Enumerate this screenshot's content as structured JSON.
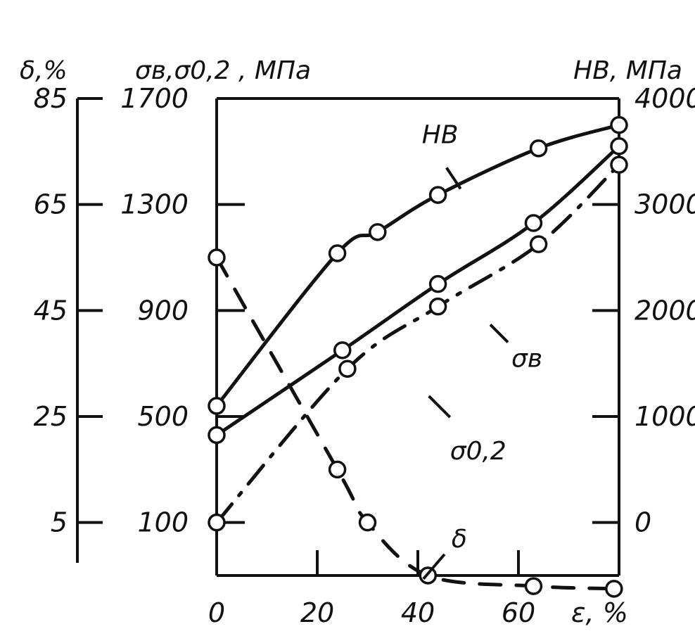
{
  "chart_data": {
    "type": "line",
    "x_axis": {
      "label": "ε, %",
      "ticks": [
        "0",
        "20",
        "40",
        "60"
      ],
      "range": [
        0,
        80
      ]
    },
    "axis_titles": {
      "delta": "δ,%",
      "sigma": "σв,σ0,2 , МПа",
      "hb": "НВ, МПа"
    },
    "y_axes": {
      "delta": {
        "ticks": [
          "85",
          "65",
          "45",
          "25",
          "5"
        ],
        "range": [
          -5,
          85
        ]
      },
      "sigma": {
        "ticks": [
          "1700",
          "1300",
          "900",
          "500",
          "100"
        ],
        "range": [
          -100,
          1700
        ]
      },
      "hb": {
        "ticks": [
          "4000",
          "3000",
          "2000",
          "1000",
          "0"
        ],
        "range": [
          -500,
          4000
        ]
      }
    },
    "series": [
      {
        "name": "НВ",
        "axis": "hb",
        "style": "solid",
        "label_point": [
          45,
          3480
        ],
        "points": [
          [
            0,
            1100
          ],
          [
            24,
            2540
          ],
          [
            32,
            2740
          ],
          [
            44,
            3090
          ],
          [
            64,
            3530
          ],
          [
            80,
            3750
          ]
        ]
      },
      {
        "name": "σв",
        "axis": "sigma",
        "style": "solid",
        "label_point": [
          60,
          860
        ],
        "points": [
          [
            0,
            430
          ],
          [
            25,
            750
          ],
          [
            44,
            1000
          ],
          [
            63,
            1230
          ],
          [
            80,
            1520
          ]
        ]
      },
      {
        "name": "σ0,2",
        "axis": "sigma",
        "style": "dashdot",
        "label_point": [
          45,
          590
        ],
        "points": [
          [
            0,
            100
          ],
          [
            26,
            680
          ],
          [
            44,
            915
          ],
          [
            64,
            1150
          ],
          [
            80,
            1450
          ]
        ]
      },
      {
        "name": "δ",
        "axis": "delta",
        "style": "dashed",
        "label_point": [
          46,
          -1
        ],
        "points": [
          [
            0,
            55
          ],
          [
            24,
            15
          ],
          [
            30,
            5
          ],
          [
            42,
            -5
          ],
          [
            63,
            -7
          ],
          [
            79,
            -7.5
          ]
        ]
      }
    ]
  }
}
